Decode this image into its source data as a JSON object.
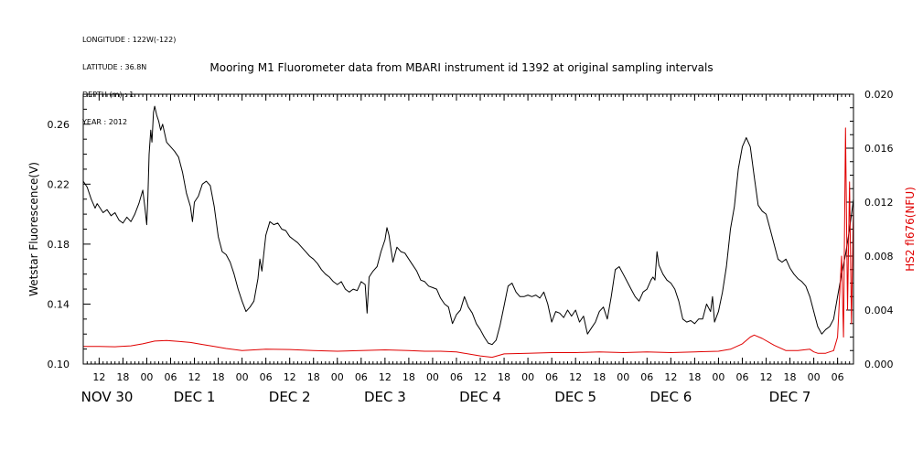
{
  "header": {
    "meta": [
      "LONGITUDE : 122W(-122)",
      "LATITUDE : 36.8N",
      "DEPTH (m) : 1",
      "YEAR : 2012"
    ],
    "title": "Mooring M1 Fluorometer data from MBARI instrument id 1392 at original sampling intervals"
  },
  "chart_data": {
    "type": "line",
    "title": "Mooring M1 Fluorometer data from MBARI instrument id 1392 at original sampling intervals",
    "x_unit": "hours since Nov 30 00:00, 2012",
    "xlim": [
      -16,
      178
    ],
    "x_ticks": [
      {
        "x": -12,
        "label": "12"
      },
      {
        "x": -6,
        "label": "18"
      },
      {
        "x": 0,
        "label": "00"
      },
      {
        "x": 6,
        "label": "06"
      },
      {
        "x": 12,
        "label": "12"
      },
      {
        "x": 18,
        "label": "18"
      },
      {
        "x": 24,
        "label": "00"
      },
      {
        "x": 30,
        "label": "06"
      },
      {
        "x": 36,
        "label": "12"
      },
      {
        "x": 42,
        "label": "18"
      },
      {
        "x": 48,
        "label": "00"
      },
      {
        "x": 54,
        "label": "06"
      },
      {
        "x": 60,
        "label": "12"
      },
      {
        "x": 66,
        "label": "18"
      },
      {
        "x": 72,
        "label": "00"
      },
      {
        "x": 78,
        "label": "06"
      },
      {
        "x": 84,
        "label": "12"
      },
      {
        "x": 90,
        "label": "18"
      },
      {
        "x": 96,
        "label": "00"
      },
      {
        "x": 102,
        "label": "06"
      },
      {
        "x": 108,
        "label": "12"
      },
      {
        "x": 114,
        "label": "18"
      },
      {
        "x": 120,
        "label": "00"
      },
      {
        "x": 126,
        "label": "06"
      },
      {
        "x": 132,
        "label": "12"
      },
      {
        "x": 138,
        "label": "18"
      },
      {
        "x": 144,
        "label": "00"
      },
      {
        "x": 150,
        "label": "06"
      },
      {
        "x": 156,
        "label": "12"
      },
      {
        "x": 162,
        "label": "18"
      },
      {
        "x": 168,
        "label": "00"
      },
      {
        "x": 174,
        "label": "06"
      }
    ],
    "day_labels": [
      {
        "x": -10,
        "label": "NOV 30"
      },
      {
        "x": 12,
        "label": "DEC  1"
      },
      {
        "x": 36,
        "label": "DEC  2"
      },
      {
        "x": 60,
        "label": "DEC  3"
      },
      {
        "x": 84,
        "label": "DEC  4"
      },
      {
        "x": 108,
        "label": "DEC  5"
      },
      {
        "x": 132,
        "label": "DEC  6"
      },
      {
        "x": 162,
        "label": "DEC  7"
      }
    ],
    "y_left": {
      "label": "Wetstar Fluorescence(V)",
      "lim": [
        0.1,
        0.28
      ],
      "ticks": [
        "0.10",
        "0.14",
        "0.18",
        "0.22",
        "0.26"
      ],
      "color": "#000000"
    },
    "y_right": {
      "label": "HS2 fl676(NFU)",
      "lim": [
        0.0,
        0.02
      ],
      "ticks": [
        "0.000",
        "0.004",
        "0.008",
        "0.012",
        "0.016",
        "0.020"
      ],
      "color": "#e00000"
    },
    "series": [
      {
        "name": "Wetstar Fluorescence(V)",
        "axis": "left",
        "color": "#000000",
        "points": [
          [
            -16,
            0.222
          ],
          [
            -15,
            0.218
          ],
          [
            -14,
            0.21
          ],
          [
            -13,
            0.204
          ],
          [
            -12.5,
            0.207
          ],
          [
            -12,
            0.205
          ],
          [
            -11,
            0.201
          ],
          [
            -10,
            0.203
          ],
          [
            -9,
            0.199
          ],
          [
            -8,
            0.201
          ],
          [
            -7,
            0.196
          ],
          [
            -6,
            0.194
          ],
          [
            -5,
            0.198
          ],
          [
            -4,
            0.195
          ],
          [
            -3,
            0.2
          ],
          [
            -2,
            0.207
          ],
          [
            -1,
            0.216
          ],
          [
            -0.5,
            0.205
          ],
          [
            0,
            0.193
          ],
          [
            0.3,
            0.212
          ],
          [
            0.6,
            0.24
          ],
          [
            1.0,
            0.256
          ],
          [
            1.3,
            0.248
          ],
          [
            1.7,
            0.268
          ],
          [
            2.0,
            0.272
          ],
          [
            2.5,
            0.266
          ],
          [
            3,
            0.262
          ],
          [
            3.5,
            0.256
          ],
          [
            4,
            0.26
          ],
          [
            5,
            0.248
          ],
          [
            6,
            0.245
          ],
          [
            7,
            0.242
          ],
          [
            8,
            0.238
          ],
          [
            9,
            0.228
          ],
          [
            10,
            0.214
          ],
          [
            11,
            0.205
          ],
          [
            11.5,
            0.195
          ],
          [
            12,
            0.208
          ],
          [
            13,
            0.212
          ],
          [
            14,
            0.22
          ],
          [
            15,
            0.222
          ],
          [
            16,
            0.219
          ],
          [
            17,
            0.205
          ],
          [
            18,
            0.185
          ],
          [
            19,
            0.175
          ],
          [
            20,
            0.173
          ],
          [
            21,
            0.168
          ],
          [
            22,
            0.16
          ],
          [
            23,
            0.15
          ],
          [
            24,
            0.142
          ],
          [
            25,
            0.135
          ],
          [
            26,
            0.138
          ],
          [
            27,
            0.142
          ],
          [
            28,
            0.157
          ],
          [
            28.5,
            0.17
          ],
          [
            29,
            0.162
          ],
          [
            30,
            0.186
          ],
          [
            31,
            0.195
          ],
          [
            32,
            0.193
          ],
          [
            33,
            0.194
          ],
          [
            34,
            0.19
          ],
          [
            35,
            0.189
          ],
          [
            36,
            0.185
          ],
          [
            37,
            0.183
          ],
          [
            38,
            0.181
          ],
          [
            39,
            0.178
          ],
          [
            40,
            0.175
          ],
          [
            41,
            0.172
          ],
          [
            42,
            0.17
          ],
          [
            43,
            0.167
          ],
          [
            44,
            0.163
          ],
          [
            45,
            0.16
          ],
          [
            46,
            0.158
          ],
          [
            47,
            0.155
          ],
          [
            48,
            0.153
          ],
          [
            49,
            0.155
          ],
          [
            50,
            0.15
          ],
          [
            51,
            0.148
          ],
          [
            52,
            0.15
          ],
          [
            53,
            0.149
          ],
          [
            54,
            0.155
          ],
          [
            55,
            0.153
          ],
          [
            55.5,
            0.134
          ],
          [
            56,
            0.158
          ],
          [
            57,
            0.162
          ],
          [
            58,
            0.165
          ],
          [
            59,
            0.175
          ],
          [
            60,
            0.183
          ],
          [
            60.5,
            0.191
          ],
          [
            61,
            0.186
          ],
          [
            62,
            0.168
          ],
          [
            63,
            0.178
          ],
          [
            64,
            0.175
          ],
          [
            65,
            0.174
          ],
          [
            66,
            0.17
          ],
          [
            67,
            0.166
          ],
          [
            68,
            0.162
          ],
          [
            69,
            0.156
          ],
          [
            70,
            0.155
          ],
          [
            71,
            0.152
          ],
          [
            72,
            0.151
          ],
          [
            73,
            0.15
          ],
          [
            74,
            0.144
          ],
          [
            75,
            0.14
          ],
          [
            76,
            0.138
          ],
          [
            77,
            0.127
          ],
          [
            78,
            0.133
          ],
          [
            79,
            0.136
          ],
          [
            80,
            0.145
          ],
          [
            81,
            0.138
          ],
          [
            82,
            0.134
          ],
          [
            83,
            0.127
          ],
          [
            84,
            0.123
          ],
          [
            85,
            0.118
          ],
          [
            86,
            0.114
          ],
          [
            87,
            0.113
          ],
          [
            88,
            0.116
          ],
          [
            89,
            0.126
          ],
          [
            90,
            0.139
          ],
          [
            91,
            0.152
          ],
          [
            92,
            0.154
          ],
          [
            93,
            0.148
          ],
          [
            94,
            0.145
          ],
          [
            95,
            0.145
          ],
          [
            96,
            0.146
          ],
          [
            97,
            0.145
          ],
          [
            98,
            0.146
          ],
          [
            99,
            0.144
          ],
          [
            100,
            0.148
          ],
          [
            101,
            0.14
          ],
          [
            102,
            0.128
          ],
          [
            103,
            0.135
          ],
          [
            104,
            0.134
          ],
          [
            105,
            0.131
          ],
          [
            106,
            0.136
          ],
          [
            107,
            0.132
          ],
          [
            108,
            0.136
          ],
          [
            109,
            0.128
          ],
          [
            110,
            0.132
          ],
          [
            111,
            0.12
          ],
          [
            112,
            0.124
          ],
          [
            113,
            0.128
          ],
          [
            114,
            0.135
          ],
          [
            115,
            0.138
          ],
          [
            116,
            0.13
          ],
          [
            117,
            0.145
          ],
          [
            118,
            0.163
          ],
          [
            119,
            0.165
          ],
          [
            120,
            0.16
          ],
          [
            121,
            0.155
          ],
          [
            122,
            0.15
          ],
          [
            123,
            0.145
          ],
          [
            124,
            0.142
          ],
          [
            125,
            0.148
          ],
          [
            126,
            0.15
          ],
          [
            127,
            0.156
          ],
          [
            127.5,
            0.158
          ],
          [
            128,
            0.156
          ],
          [
            128.5,
            0.175
          ],
          [
            129,
            0.166
          ],
          [
            130,
            0.16
          ],
          [
            131,
            0.156
          ],
          [
            132,
            0.154
          ],
          [
            133,
            0.15
          ],
          [
            134,
            0.142
          ],
          [
            135,
            0.13
          ],
          [
            136,
            0.128
          ],
          [
            137,
            0.129
          ],
          [
            138,
            0.127
          ],
          [
            139,
            0.13
          ],
          [
            140,
            0.13
          ],
          [
            141,
            0.14
          ],
          [
            142,
            0.135
          ],
          [
            142.5,
            0.145
          ],
          [
            143,
            0.128
          ],
          [
            144,
            0.135
          ],
          [
            145,
            0.148
          ],
          [
            146,
            0.165
          ],
          [
            147,
            0.19
          ],
          [
            148,
            0.205
          ],
          [
            149,
            0.23
          ],
          [
            150,
            0.245
          ],
          [
            151,
            0.251
          ],
          [
            152,
            0.245
          ],
          [
            153,
            0.225
          ],
          [
            154,
            0.206
          ],
          [
            155,
            0.202
          ],
          [
            156,
            0.2
          ],
          [
            157,
            0.19
          ],
          [
            158,
            0.18
          ],
          [
            159,
            0.17
          ],
          [
            160,
            0.168
          ],
          [
            161,
            0.17
          ],
          [
            162,
            0.164
          ],
          [
            163,
            0.16
          ],
          [
            164,
            0.157
          ],
          [
            165,
            0.155
          ],
          [
            166,
            0.152
          ],
          [
            167,
            0.145
          ],
          [
            168,
            0.135
          ],
          [
            169,
            0.125
          ],
          [
            170,
            0.12
          ],
          [
            171,
            0.123
          ],
          [
            172,
            0.125
          ],
          [
            173,
            0.13
          ],
          [
            174,
            0.145
          ],
          [
            175,
            0.16
          ],
          [
            176,
            0.173
          ],
          [
            177,
            0.19
          ],
          [
            178,
            0.21
          ]
        ]
      },
      {
        "name": "HS2 fl676(NFU)",
        "axis": "right",
        "color": "#e00000",
        "points": [
          [
            -16,
            0.0013
          ],
          [
            -12,
            0.0013
          ],
          [
            -8,
            0.00128
          ],
          [
            -4,
            0.00135
          ],
          [
            -1,
            0.0015
          ],
          [
            2,
            0.0017
          ],
          [
            5,
            0.00175
          ],
          [
            8,
            0.00168
          ],
          [
            11,
            0.0016
          ],
          [
            14,
            0.00145
          ],
          [
            17,
            0.0013
          ],
          [
            20,
            0.00115
          ],
          [
            24,
            0.001
          ],
          [
            30,
            0.0011
          ],
          [
            36,
            0.00108
          ],
          [
            42,
            0.001
          ],
          [
            48,
            0.00095
          ],
          [
            54,
            0.001
          ],
          [
            60,
            0.00105
          ],
          [
            66,
            0.001
          ],
          [
            70,
            0.00095
          ],
          [
            74,
            0.00095
          ],
          [
            78,
            0.0009
          ],
          [
            80,
            0.0008
          ],
          [
            84,
            0.0006
          ],
          [
            87,
            0.0005
          ],
          [
            90,
            0.00075
          ],
          [
            96,
            0.0008
          ],
          [
            102,
            0.00085
          ],
          [
            108,
            0.00085
          ],
          [
            114,
            0.0009
          ],
          [
            120,
            0.00085
          ],
          [
            126,
            0.0009
          ],
          [
            132,
            0.00085
          ],
          [
            138,
            0.0009
          ],
          [
            144,
            0.00095
          ],
          [
            147,
            0.0011
          ],
          [
            150,
            0.0015
          ],
          [
            152,
            0.002
          ],
          [
            153,
            0.00215
          ],
          [
            155,
            0.0019
          ],
          [
            158,
            0.0014
          ],
          [
            161,
            0.001
          ],
          [
            164,
            0.001
          ],
          [
            167,
            0.0011
          ],
          [
            168,
            0.0009
          ],
          [
            169,
            0.0008
          ],
          [
            170,
            0.0008
          ],
          [
            171,
            0.0008
          ],
          [
            172,
            0.0009
          ],
          [
            173,
            0.001
          ],
          [
            174,
            0.002
          ],
          [
            175,
            0.008
          ],
          [
            175.5,
            0.002
          ],
          [
            176,
            0.0175
          ],
          [
            176.5,
            0.004
          ],
          [
            177,
            0.0135
          ],
          [
            177.5,
            0.003
          ],
          [
            178,
            0.012
          ]
        ]
      }
    ]
  }
}
